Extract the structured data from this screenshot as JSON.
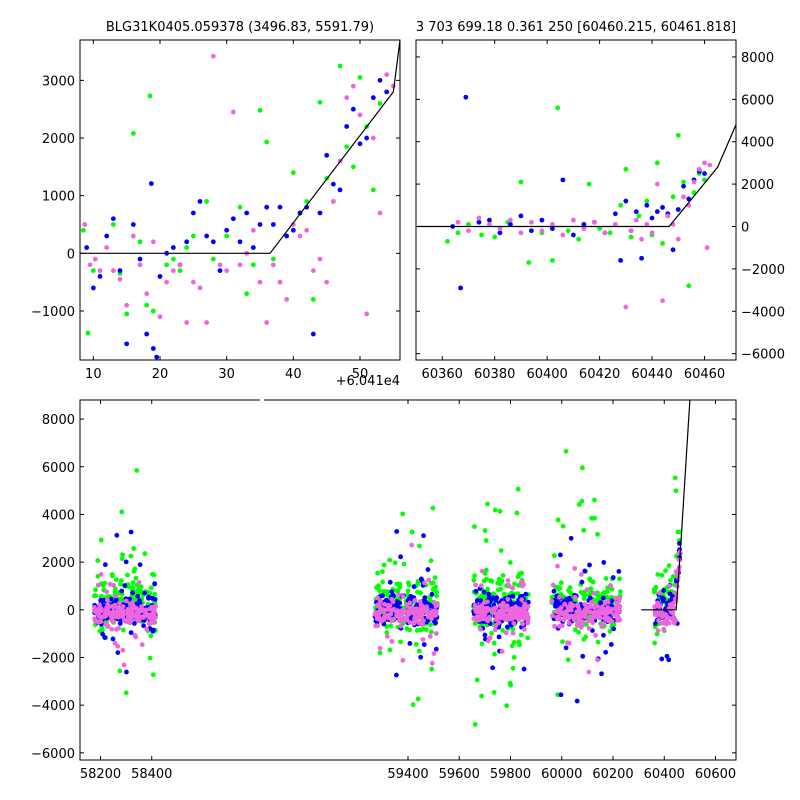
{
  "chart_data": [
    {
      "id": "top-left",
      "type": "scatter",
      "title": "BLG31K0405.059378 (3496.83, 5591.79)",
      "xlim": [
        8,
        56
      ],
      "ylim": [
        -1850,
        3700
      ],
      "xticks": [
        "10",
        "20",
        "30",
        "40",
        "50"
      ],
      "xtick_values": [
        10,
        20,
        30,
        40,
        50
      ],
      "yticks": [
        "−1000",
        "0",
        "1000",
        "2000",
        "3000"
      ],
      "ytick_values": [
        -1000,
        0,
        1000,
        2000,
        3000
      ],
      "offset_label": "+6.041e4",
      "model_line": {
        "x": [
          8,
          36.5,
          55,
          56
        ],
        "y": [
          0,
          0,
          2800,
          3700
        ]
      },
      "series": [
        {
          "color": "#00ff00",
          "points": [
            [
              8.5,
              400
            ],
            [
              9.2,
              -1380
            ],
            [
              10,
              -300
            ],
            [
              13,
              500
            ],
            [
              14,
              -350
            ],
            [
              15,
              -1050
            ],
            [
              16,
              2080
            ],
            [
              17,
              200
            ],
            [
              18,
              -900
            ],
            [
              18.5,
              2730
            ],
            [
              19,
              -1000
            ],
            [
              21,
              -200
            ],
            [
              22,
              -100
            ],
            [
              23,
              -300
            ],
            [
              24,
              100
            ],
            [
              25,
              300
            ],
            [
              27,
              900
            ],
            [
              28,
              -100
            ],
            [
              30,
              300
            ],
            [
              32,
              800
            ],
            [
              33,
              -700
            ],
            [
              34,
              -200
            ],
            [
              35,
              2480
            ],
            [
              36,
              1930
            ],
            [
              37,
              -100
            ],
            [
              38,
              -500
            ],
            [
              40,
              1400
            ],
            [
              41,
              700
            ],
            [
              42,
              900
            ],
            [
              43,
              -800
            ],
            [
              44,
              2620
            ],
            [
              45,
              1300
            ],
            [
              46,
              900
            ],
            [
              47,
              3250
            ],
            [
              48,
              1850
            ],
            [
              49,
              1500
            ],
            [
              50,
              3050
            ],
            [
              51,
              2200
            ],
            [
              52,
              1100
            ],
            [
              53,
              2600
            ]
          ]
        },
        {
          "color": "#0000ff",
          "points": [
            [
              9,
              100
            ],
            [
              10,
              -600
            ],
            [
              11,
              -400
            ],
            [
              12,
              300
            ],
            [
              13,
              600
            ],
            [
              14,
              -300
            ],
            [
              15,
              -1570
            ],
            [
              16,
              500
            ],
            [
              17,
              -100
            ],
            [
              18,
              -1400
            ],
            [
              18.7,
              1210
            ],
            [
              19,
              -1650
            ],
            [
              19.5,
              -1800
            ],
            [
              20,
              -400
            ],
            [
              21,
              0
            ],
            [
              22,
              100
            ],
            [
              23,
              -200
            ],
            [
              24,
              200
            ],
            [
              25,
              700
            ],
            [
              26,
              900
            ],
            [
              27,
              300
            ],
            [
              28,
              200
            ],
            [
              29,
              -300
            ],
            [
              30,
              400
            ],
            [
              31,
              600
            ],
            [
              32,
              200
            ],
            [
              33,
              700
            ],
            [
              34,
              100
            ],
            [
              35,
              500
            ],
            [
              36,
              800
            ],
            [
              37,
              500
            ],
            [
              38,
              800
            ],
            [
              39,
              300
            ],
            [
              40,
              400
            ],
            [
              41,
              700
            ],
            [
              42,
              800
            ],
            [
              43,
              -1400
            ],
            [
              44,
              700
            ],
            [
              45,
              1700
            ],
            [
              46,
              1200
            ],
            [
              47,
              1100
            ],
            [
              48,
              2200
            ],
            [
              49,
              2500
            ],
            [
              50,
              1900
            ],
            [
              51,
              2000
            ],
            [
              52,
              2700
            ],
            [
              53,
              3000
            ],
            [
              54,
              2800
            ]
          ]
        },
        {
          "color": "#ee66dd",
          "points": [
            [
              8.7,
              500
            ],
            [
              9.5,
              -200
            ],
            [
              10.3,
              -100
            ],
            [
              11,
              -300
            ],
            [
              12,
              100
            ],
            [
              13,
              -300
            ],
            [
              14,
              -450
            ],
            [
              15,
              -900
            ],
            [
              16,
              300
            ],
            [
              17,
              -200
            ],
            [
              18,
              -700
            ],
            [
              19,
              200
            ],
            [
              20,
              -1100
            ],
            [
              21,
              -500
            ],
            [
              22,
              -300
            ],
            [
              23,
              -200
            ],
            [
              24,
              -1200
            ],
            [
              25,
              -500
            ],
            [
              26,
              -600
            ],
            [
              27,
              -1200
            ],
            [
              28,
              3420
            ],
            [
              29,
              -200
            ],
            [
              30,
              -300
            ],
            [
              31,
              2450
            ],
            [
              32,
              -200
            ],
            [
              33,
              0
            ],
            [
              34,
              400
            ],
            [
              35,
              -500
            ],
            [
              36,
              -1200
            ],
            [
              37,
              -200
            ],
            [
              38,
              -500
            ],
            [
              39,
              -800
            ],
            [
              40,
              500
            ],
            [
              41,
              300
            ],
            [
              42,
              400
            ],
            [
              43,
              -300
            ],
            [
              44,
              -100
            ],
            [
              45,
              -500
            ],
            [
              46,
              900
            ],
            [
              47,
              1600
            ],
            [
              48,
              2700
            ],
            [
              49,
              2900
            ],
            [
              50,
              2400
            ],
            [
              51,
              -1050
            ],
            [
              52,
              2000
            ],
            [
              53,
              700
            ],
            [
              54,
              3100
            ],
            [
              55,
              2900
            ]
          ]
        }
      ]
    },
    {
      "id": "top-right",
      "type": "scatter",
      "title": "3 703 699.18 0.361 250 [60460.215, 60461.818]",
      "xlim": [
        60350,
        60472
      ],
      "ylim": [
        -6300,
        8800
      ],
      "xticks": [
        "60360",
        "60380",
        "60400",
        "60420",
        "60440",
        "60460"
      ],
      "xtick_values": [
        60360,
        60380,
        60400,
        60420,
        60440,
        60460
      ],
      "yticks": [
        "−6000",
        "−4000",
        "−2000",
        "0",
        "2000",
        "4000",
        "6000",
        "8000"
      ],
      "ytick_values": [
        -6000,
        -4000,
        -2000,
        0,
        2000,
        4000,
        6000,
        8000
      ],
      "model_line": {
        "x": [
          60350,
          60446.5,
          60465,
          60472
        ],
        "y": [
          0,
          0,
          2800,
          4800
        ]
      },
      "series": [
        {
          "color": "#00ff00",
          "points": [
            [
              60362,
              -700
            ],
            [
              60366,
              -300
            ],
            [
              60370,
              100
            ],
            [
              60375,
              -400
            ],
            [
              60380,
              -500
            ],
            [
              60385,
              200
            ],
            [
              60390,
              2100
            ],
            [
              60393,
              -1700
            ],
            [
              60398,
              -300
            ],
            [
              60402,
              -1600
            ],
            [
              60404,
              5600
            ],
            [
              60408,
              -200
            ],
            [
              60412,
              -600
            ],
            [
              60416,
              2000
            ],
            [
              60420,
              -100
            ],
            [
              60424,
              -300
            ],
            [
              60428,
              1000
            ],
            [
              60430,
              2700
            ],
            [
              60432,
              -500
            ],
            [
              60435,
              500
            ],
            [
              60438,
              1200
            ],
            [
              60440,
              -400
            ],
            [
              60442,
              3000
            ],
            [
              60444,
              -800
            ],
            [
              60446,
              600
            ],
            [
              60448,
              1400
            ],
            [
              60450,
              4300
            ],
            [
              60452,
              2100
            ],
            [
              60454,
              -2800
            ],
            [
              60456,
              1600
            ],
            [
              60458,
              2500
            ],
            [
              60460,
              2200
            ]
          ]
        },
        {
          "color": "#0000ff",
          "points": [
            [
              60364,
              0
            ],
            [
              60367,
              -2900
            ],
            [
              60369,
              6100
            ],
            [
              60374,
              200
            ],
            [
              60378,
              300
            ],
            [
              60382,
              -300
            ],
            [
              60386,
              100
            ],
            [
              60390,
              500
            ],
            [
              60394,
              -200
            ],
            [
              60398,
              300
            ],
            [
              60402,
              -100
            ],
            [
              60406,
              2200
            ],
            [
              60410,
              -400
            ],
            [
              60414,
              100
            ],
            [
              60418,
              200
            ],
            [
              60422,
              -300
            ],
            [
              60426,
              600
            ],
            [
              60428,
              -1600
            ],
            [
              60430,
              1200
            ],
            [
              60432,
              -200
            ],
            [
              60434,
              700
            ],
            [
              60436,
              -1500
            ],
            [
              60438,
              1000
            ],
            [
              60440,
              400
            ],
            [
              60442,
              700
            ],
            [
              60444,
              900
            ],
            [
              60446,
              600
            ],
            [
              60448,
              -1100
            ],
            [
              60450,
              800
            ],
            [
              60452,
              1900
            ],
            [
              60454,
              1300
            ],
            [
              60456,
              2200
            ],
            [
              60458,
              2600
            ],
            [
              60460,
              2500
            ]
          ]
        },
        {
          "color": "#ee66dd",
          "points": [
            [
              60366,
              200
            ],
            [
              60370,
              -200
            ],
            [
              60374,
              400
            ],
            [
              60378,
              100
            ],
            [
              60382,
              -100
            ],
            [
              60386,
              300
            ],
            [
              60390,
              -300
            ],
            [
              60394,
              200
            ],
            [
              60398,
              -200
            ],
            [
              60402,
              100
            ],
            [
              60406,
              -400
            ],
            [
              60410,
              300
            ],
            [
              60414,
              -100
            ],
            [
              60418,
              200
            ],
            [
              60422,
              -300
            ],
            [
              60426,
              100
            ],
            [
              60430,
              -3800
            ],
            [
              60432,
              -200
            ],
            [
              60434,
              300
            ],
            [
              60436,
              -600
            ],
            [
              60438,
              100
            ],
            [
              60440,
              -300
            ],
            [
              60442,
              2000
            ],
            [
              60444,
              -3500
            ],
            [
              60446,
              500
            ],
            [
              60448,
              100
            ],
            [
              60450,
              -600
            ],
            [
              60452,
              1400
            ],
            [
              60454,
              1000
            ],
            [
              60456,
              2100
            ],
            [
              60458,
              2700
            ],
            [
              60460,
              3000
            ],
            [
              60461,
              -1000
            ],
            [
              60462,
              2900
            ]
          ]
        }
      ]
    },
    {
      "id": "bottom",
      "type": "scatter",
      "xlim": [
        58120,
        60680
      ],
      "ylim": [
        -6300,
        8800
      ],
      "xticks": [
        "58200",
        "58400",
        "59400",
        "59600",
        "59800",
        "60000",
        "60200",
        "60400",
        "60600"
      ],
      "xtick_values": [
        58200,
        58400,
        59400,
        59600,
        59800,
        60000,
        60200,
        60400,
        60600
      ],
      "yticks": [
        "−6000",
        "−4000",
        "−2000",
        "0",
        "2000",
        "4000",
        "6000",
        "8000"
      ],
      "ytick_values": [
        -6000,
        -4000,
        -2000,
        0,
        2000,
        4000,
        6000,
        8000
      ],
      "axis_break": {
        "axis": "x",
        "left_end": 58440,
        "right_start": 59220
      },
      "model_line": {
        "x": [
          60310,
          60446.5,
          60465,
          60500
        ],
        "y": [
          0,
          0,
          2800,
          8800
        ]
      },
      "seasons": [
        {
          "x": [
            58175,
            58415
          ]
        },
        {
          "x": [
            59270,
            59515
          ]
        },
        {
          "x": [
            59655,
            59870
          ]
        },
        {
          "x": [
            59960,
            60230
          ]
        },
        {
          "x": [
            60360,
            60462
          ]
        }
      ]
    }
  ]
}
